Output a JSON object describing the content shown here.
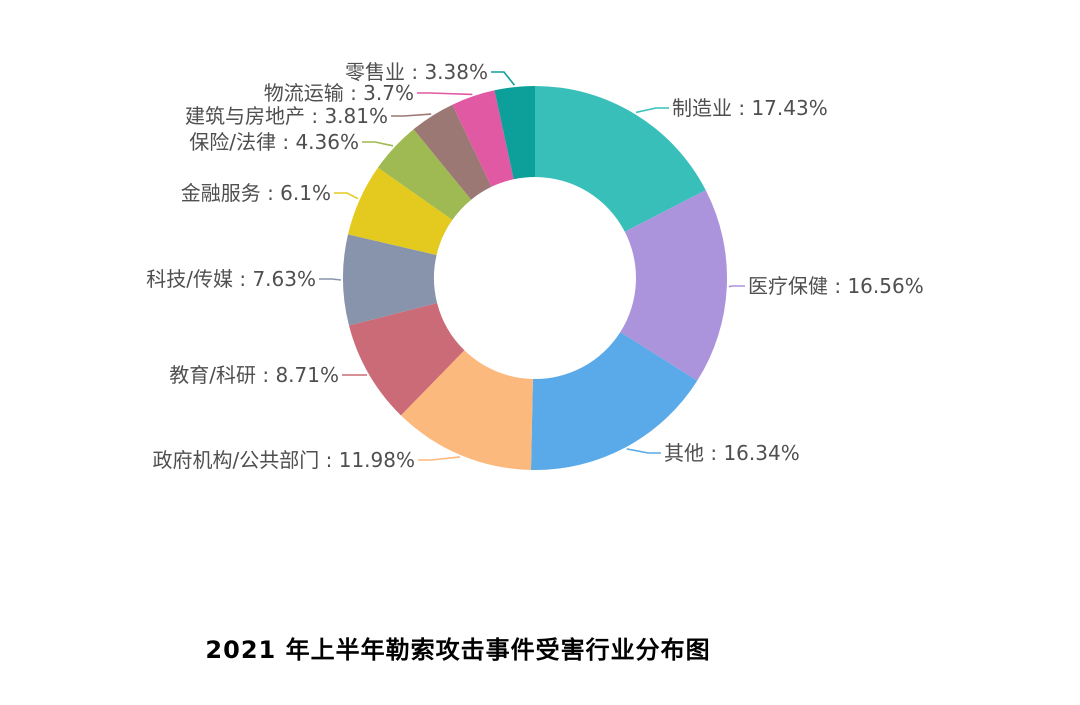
{
  "page": {
    "background_color": "#ffffff",
    "text_color": "#4f4f4f",
    "title_color": "#000000"
  },
  "chart_data": {
    "type": "pie",
    "subtype": "donut",
    "title": "2021 年上半年勒索攻击事件受害行业分布图",
    "direction": "clockwise",
    "start_angle_deg": 0,
    "label_format": "{name} : {value}%",
    "legend": "none",
    "grid": "off",
    "slices": [
      {
        "name": "制造业",
        "value": 17.43,
        "color": "#38bfba"
      },
      {
        "name": "医疗保健",
        "value": 16.56,
        "color": "#ab94dc"
      },
      {
        "name": "其他",
        "value": 16.34,
        "color": "#5aa9e8"
      },
      {
        "name": "政府机构/公共部门",
        "value": 11.98,
        "color": "#fbb97e"
      },
      {
        "name": "教育/科研",
        "value": 8.71,
        "color": "#cb6b77"
      },
      {
        "name": "科技/传媒",
        "value": 7.63,
        "color": "#8794ab"
      },
      {
        "name": "金融服务",
        "value": 6.1,
        "color": "#e4ca1e"
      },
      {
        "name": "保险/法律",
        "value": 4.36,
        "color": "#9fb953"
      },
      {
        "name": "建筑与房地产",
        "value": 3.81,
        "color": "#9c7875"
      },
      {
        "name": "物流运输",
        "value": 3.7,
        "color": "#e158a3"
      },
      {
        "name": "零售业",
        "value": 3.38,
        "color": "#0da09a"
      }
    ]
  }
}
